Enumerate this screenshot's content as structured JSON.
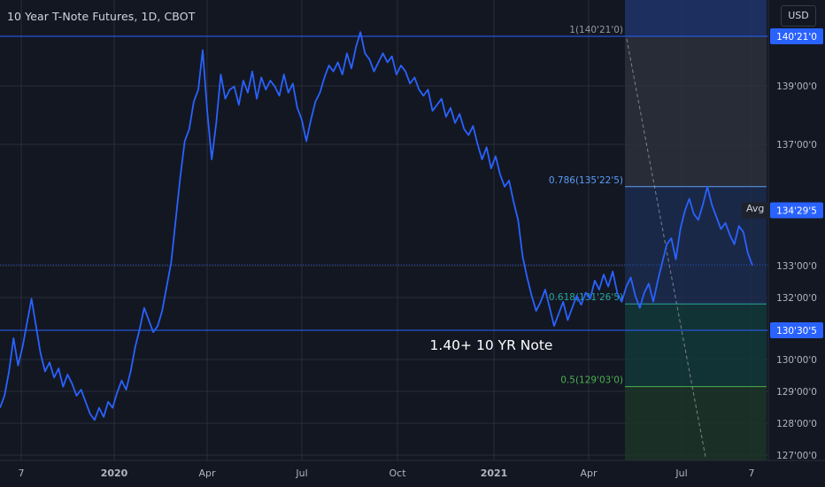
{
  "header": {
    "title": "10 Year T-Note Futures, 1D, CBOT",
    "currency": "USD",
    "avg_label": "Avg"
  },
  "colors": {
    "background": "#131722",
    "line": "#2962ff",
    "grid": "#2a2e39",
    "axis_text": "#b2b5be",
    "horizontal_line": "#2962ff",
    "fib_top_zone": "#1e3468",
    "fib_gray_zone": "#2e323d",
    "fib_blue_zone": "#1c2c4d",
    "fib_teal_zone": "#13383a",
    "fib_green_zone": "#1c3427",
    "fib_label_gray": "#9598a1",
    "fib_label_blue": "#5b9cf6",
    "fib_label_teal": "#26a69a",
    "fib_label_green": "#4caf50",
    "price_tag_bg": "#2962ff",
    "avg_tag_bg": "#1e222d"
  },
  "chart_data": {
    "type": "line",
    "x_axis_labels": [
      "7",
      "2020",
      "Apr",
      "Jul",
      "Oct",
      "2021",
      "Apr",
      "Jul",
      "7"
    ],
    "y_axis_labels": [
      "139'00'0",
      "137'00'0",
      "133'00'0",
      "132'00'0",
      "130'00'0",
      "129'00'0",
      "128'00'0",
      "127'00'0"
    ],
    "price_tags": [
      {
        "label": "140'21'0",
        "value": 140.66
      },
      {
        "label": "134'29'5",
        "value": 134.92
      },
      {
        "label": "130'30'5",
        "value": 130.96
      }
    ],
    "horizontal_lines": [
      140.66,
      130.96
    ],
    "annotation": {
      "text": "1.40+ 10 YR Note",
      "at": 130.55
    },
    "fib_levels": [
      {
        "label": "1(140'21'0)",
        "value": 140.66
      },
      {
        "label": "0.786(135'22'5)",
        "value": 135.7
      },
      {
        "label": "0.618(131'26'5)",
        "value": 131.83
      },
      {
        "label": "0.5(129'03'0)",
        "value": 129.1
      }
    ],
    "series": [
      {
        "values": [
          128.4,
          128.8,
          129.6,
          130.7,
          129.8,
          130.4,
          131.2,
          132.0,
          131.1,
          130.2,
          129.6,
          129.9,
          129.4,
          129.7,
          129.1,
          129.5,
          129.2,
          128.8,
          129.0,
          128.6,
          128.2,
          128.0,
          128.4,
          128.1,
          128.6,
          128.4,
          128.9,
          129.3,
          129.0,
          129.6,
          130.4,
          131.0,
          131.7,
          131.3,
          130.9,
          131.1,
          131.6,
          132.4,
          133.2,
          134.6,
          136.0,
          137.2,
          137.6,
          138.5,
          138.9,
          140.2,
          138.2,
          136.6,
          137.8,
          139.4,
          138.6,
          138.9,
          139.0,
          138.4,
          139.2,
          138.8,
          139.5,
          138.6,
          139.3,
          138.9,
          139.2,
          139.0,
          138.7,
          139.4,
          138.8,
          139.1,
          138.3,
          137.9,
          137.2,
          137.9,
          138.5,
          138.8,
          139.3,
          139.7,
          139.5,
          139.8,
          139.4,
          140.1,
          139.6,
          140.3,
          140.8,
          140.1,
          139.9,
          139.5,
          139.8,
          140.1,
          139.8,
          140.0,
          139.4,
          139.7,
          139.5,
          139.1,
          139.3,
          138.9,
          138.7,
          138.9,
          138.2,
          138.4,
          138.6,
          138.0,
          138.3,
          137.8,
          138.1,
          137.6,
          137.4,
          137.7,
          137.1,
          136.6,
          137.0,
          136.3,
          136.7,
          136.1,
          135.7,
          135.9,
          135.2,
          134.6,
          133.4,
          132.7,
          132.1,
          131.6,
          131.9,
          132.3,
          131.7,
          131.1,
          131.5,
          131.9,
          131.3,
          131.7,
          132.1,
          131.8,
          132.2,
          132.0,
          132.6,
          132.3,
          132.8,
          132.4,
          132.9,
          132.2,
          131.9,
          132.4,
          132.7,
          132.1,
          131.7,
          132.2,
          132.5,
          131.9,
          132.6,
          133.2,
          133.8,
          134.0,
          133.3,
          134.3,
          134.9,
          135.3,
          134.8,
          134.6,
          135.1,
          135.7,
          135.1,
          134.7,
          134.3,
          134.5,
          134.1,
          133.8,
          134.4,
          134.2,
          133.5,
          133.1
        ]
      }
    ]
  }
}
